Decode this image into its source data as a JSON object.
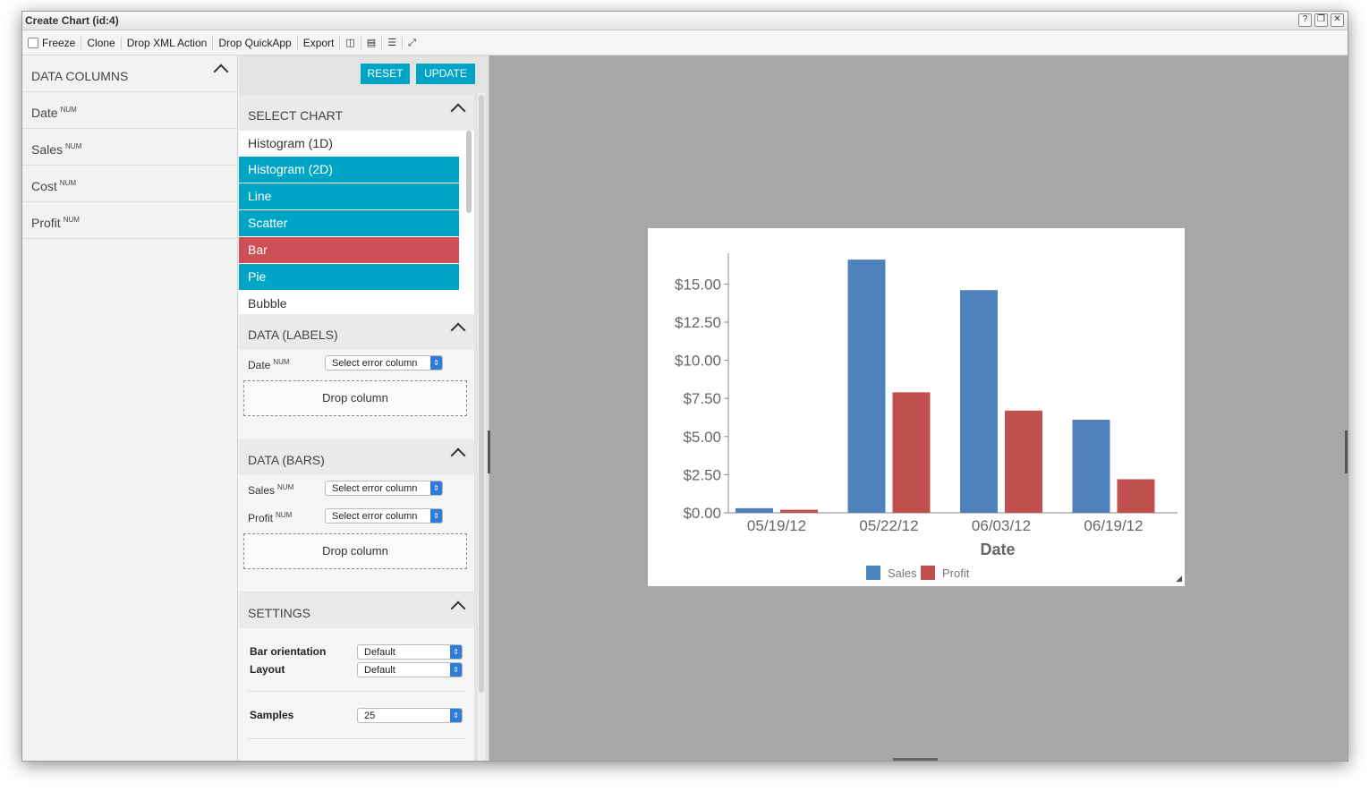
{
  "window": {
    "title": "Create Chart (id:4)",
    "buttons": [
      "?",
      "❐",
      "✕"
    ]
  },
  "toolbar": {
    "freeze": "Freeze",
    "clone": "Clone",
    "drop_xml": "Drop XML Action",
    "drop_quickapp": "Drop QuickApp",
    "export": "Export"
  },
  "data_columns": {
    "title": "DATA COLUMNS",
    "items": [
      {
        "name": "Date",
        "type": "NUM"
      },
      {
        "name": "Sales",
        "type": "NUM"
      },
      {
        "name": "Cost",
        "type": "NUM"
      },
      {
        "name": "Profit",
        "type": "NUM"
      }
    ]
  },
  "actions": {
    "reset": "RESET",
    "update": "UPDATE"
  },
  "select_chart": {
    "title": "SELECT CHART",
    "items": [
      "Histogram (1D)",
      "Histogram (2D)",
      "Line",
      "Scatter",
      "Bar",
      "Pie",
      "Bubble"
    ]
  },
  "data_labels": {
    "title": "DATA (LABELS)",
    "fields": [
      {
        "name": "Date",
        "type": "NUM",
        "select": "Select error column"
      }
    ],
    "drop": "Drop column"
  },
  "data_bars": {
    "title": "DATA (BARS)",
    "fields": [
      {
        "name": "Sales",
        "type": "NUM",
        "select": "Select error column"
      },
      {
        "name": "Profit",
        "type": "NUM",
        "select": "Select error column"
      }
    ],
    "drop": "Drop column"
  },
  "settings": {
    "title": "SETTINGS",
    "bar_orientation": {
      "label": "Bar orientation",
      "value": "Default"
    },
    "layout": {
      "label": "Layout",
      "value": "Default"
    },
    "samples": {
      "label": "Samples",
      "value": "25"
    }
  },
  "colors": {
    "accent": "#00a5c6",
    "selected_bar": "#cd5058",
    "sales": "#4f81bd",
    "profit": "#c0504d"
  },
  "chart_data": {
    "type": "bar",
    "categories": [
      "05/19/12",
      "05/22/12",
      "06/03/12",
      "06/19/12"
    ],
    "series": [
      {
        "name": "Sales",
        "values": [
          0.3,
          16.6,
          14.6,
          6.1
        ]
      },
      {
        "name": "Profit",
        "values": [
          0.2,
          7.9,
          6.7,
          2.2
        ]
      }
    ],
    "xlabel": "Date",
    "ylabel": "",
    "ylim": [
      0,
      16.9
    ],
    "yticks": [
      0,
      2.5,
      5,
      7.5,
      10,
      12.5,
      15
    ],
    "ytick_labels": [
      "$0.00",
      "$2.50",
      "$5.00",
      "$7.50",
      "$10.00",
      "$12.50",
      "$15.00"
    ],
    "legend": "bottom",
    "grid": false
  }
}
